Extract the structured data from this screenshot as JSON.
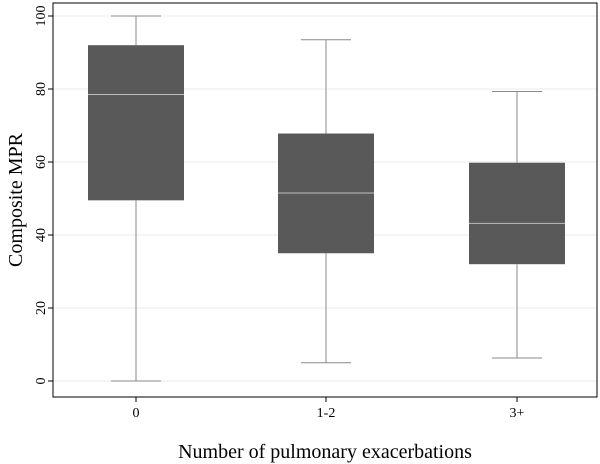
{
  "chart_data": {
    "type": "box",
    "xlabel": "Number of pulmonary exacerbations",
    "ylabel": "Composite MPR",
    "ylim": [
      0,
      100
    ],
    "yticks": [
      0,
      20,
      40,
      60,
      80,
      100
    ],
    "grid": true,
    "categories": [
      "0",
      "1-2",
      "3+"
    ],
    "boxes": [
      {
        "category": "0",
        "min": 0,
        "q1": 49.5,
        "median": 78.5,
        "q3": 92,
        "max": 100
      },
      {
        "category": "1-2",
        "min": 5,
        "q1": 35,
        "median": 51.5,
        "q3": 67.8,
        "max": 93.5
      },
      {
        "category": "3+",
        "min": 6.3,
        "q1": 32,
        "median": 43.2,
        "q3": 59.8,
        "max": 79.3
      }
    ],
    "colors": {
      "box": "#595959",
      "median": "#bdbdbd",
      "whisker": "#8a8a8a",
      "grid": "#ebebeb",
      "axis": "#000000"
    }
  }
}
